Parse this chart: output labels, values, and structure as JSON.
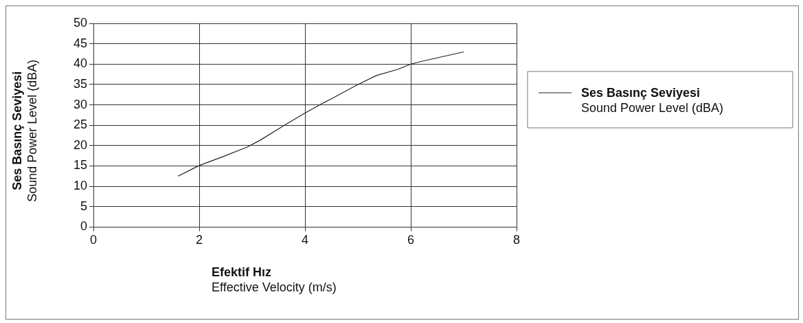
{
  "chart_data": {
    "type": "line",
    "xlabel": "Efektif Hız\nEffective Velocity (m/s)",
    "ylabel": "Ses Basınç Seviyesi\nSound Power Level (dBA)",
    "x": [
      1.6,
      2.0,
      2.45,
      2.9,
      3.15,
      3.6,
      4.0,
      4.35,
      4.5,
      5.0,
      5.35,
      5.75,
      6.0,
      6.25,
      7.0
    ],
    "series": [
      {
        "name": "Ses Basınç Seviyesi\nSound Power Level (dBA)",
        "color": "#222222",
        "values": [
          12.5,
          15.1,
          17.3,
          19.6,
          21.3,
          24.9,
          28.0,
          30.5,
          31.5,
          35.0,
          37.2,
          38.7,
          40.0,
          40.8,
          43.0
        ]
      }
    ],
    "xlim": [
      0,
      8
    ],
    "xticks": [
      0,
      2,
      4,
      6,
      8
    ],
    "ylim": [
      0,
      50
    ],
    "yticks": [
      0,
      5,
      10,
      15,
      20,
      25,
      30,
      35,
      40,
      45,
      50
    ],
    "grid": true,
    "legend": "right",
    "marker": "none",
    "line_style": "solid"
  }
}
